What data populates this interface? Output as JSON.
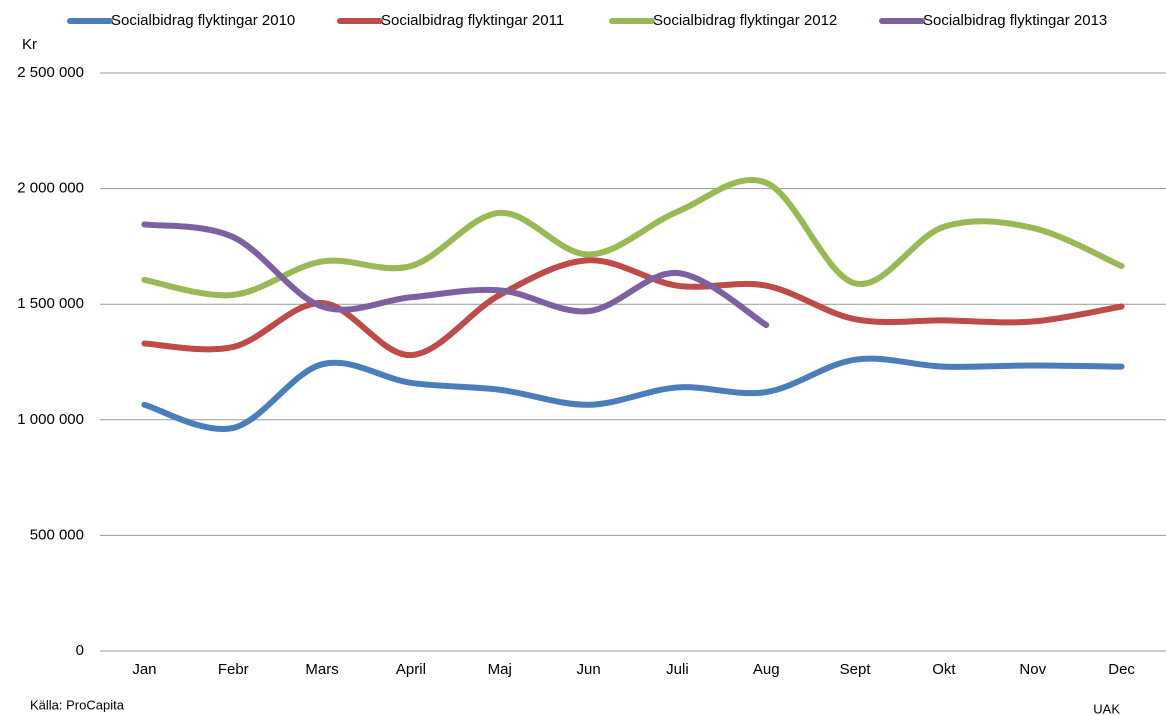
{
  "chart_data": {
    "type": "line",
    "y_label": "Kr",
    "source": "Källa: ProCapita",
    "credit": "UAK",
    "categories": [
      "Jan",
      "Febr",
      "Mars",
      "April",
      "Maj",
      "Jun",
      "Juli",
      "Aug",
      "Sept",
      "Okt",
      "Nov",
      "Dec"
    ],
    "series": [
      {
        "name": "Socialbidrag flyktingar 2010",
        "color": "#4a7ebb",
        "values": [
          1065000,
          965000,
          1240000,
          1160000,
          1130000,
          1065000,
          1140000,
          1120000,
          1260000,
          1230000,
          1235000,
          1230000
        ]
      },
      {
        "name": "Socialbidrag flyktingar 2011",
        "color": "#be4b48",
        "values": [
          1330000,
          1315000,
          1505000,
          1280000,
          1540000,
          1690000,
          1580000,
          1580000,
          1435000,
          1430000,
          1425000,
          1490000
        ]
      },
      {
        "name": "Socialbidrag flyktingar 2012",
        "color": "#98b954",
        "values": [
          1605000,
          1540000,
          1685000,
          1665000,
          1895000,
          1715000,
          1900000,
          2025000,
          1590000,
          1835000,
          1830000,
          1665000
        ]
      },
      {
        "name": "Socialbidrag flyktingar 2013",
        "color": "#7d60a0",
        "values": [
          1845000,
          1790000,
          1490000,
          1530000,
          1560000,
          1470000,
          1635000,
          1410000,
          null,
          null,
          null,
          null
        ]
      }
    ],
    "ylim": [
      0,
      2500000
    ],
    "yticks": [
      0,
      {
        "value": 500000,
        "label": "500 000"
      },
      {
        "value": 1000000,
        "label": "1 000 000"
      },
      {
        "value": 1500000,
        "label": "1 500 000"
      },
      {
        "value": 2000000,
        "label": "2 000 000"
      },
      {
        "value": 2500000,
        "label": "2 500 000"
      }
    ],
    "grid": true,
    "smooth": true,
    "legend": "top"
  }
}
